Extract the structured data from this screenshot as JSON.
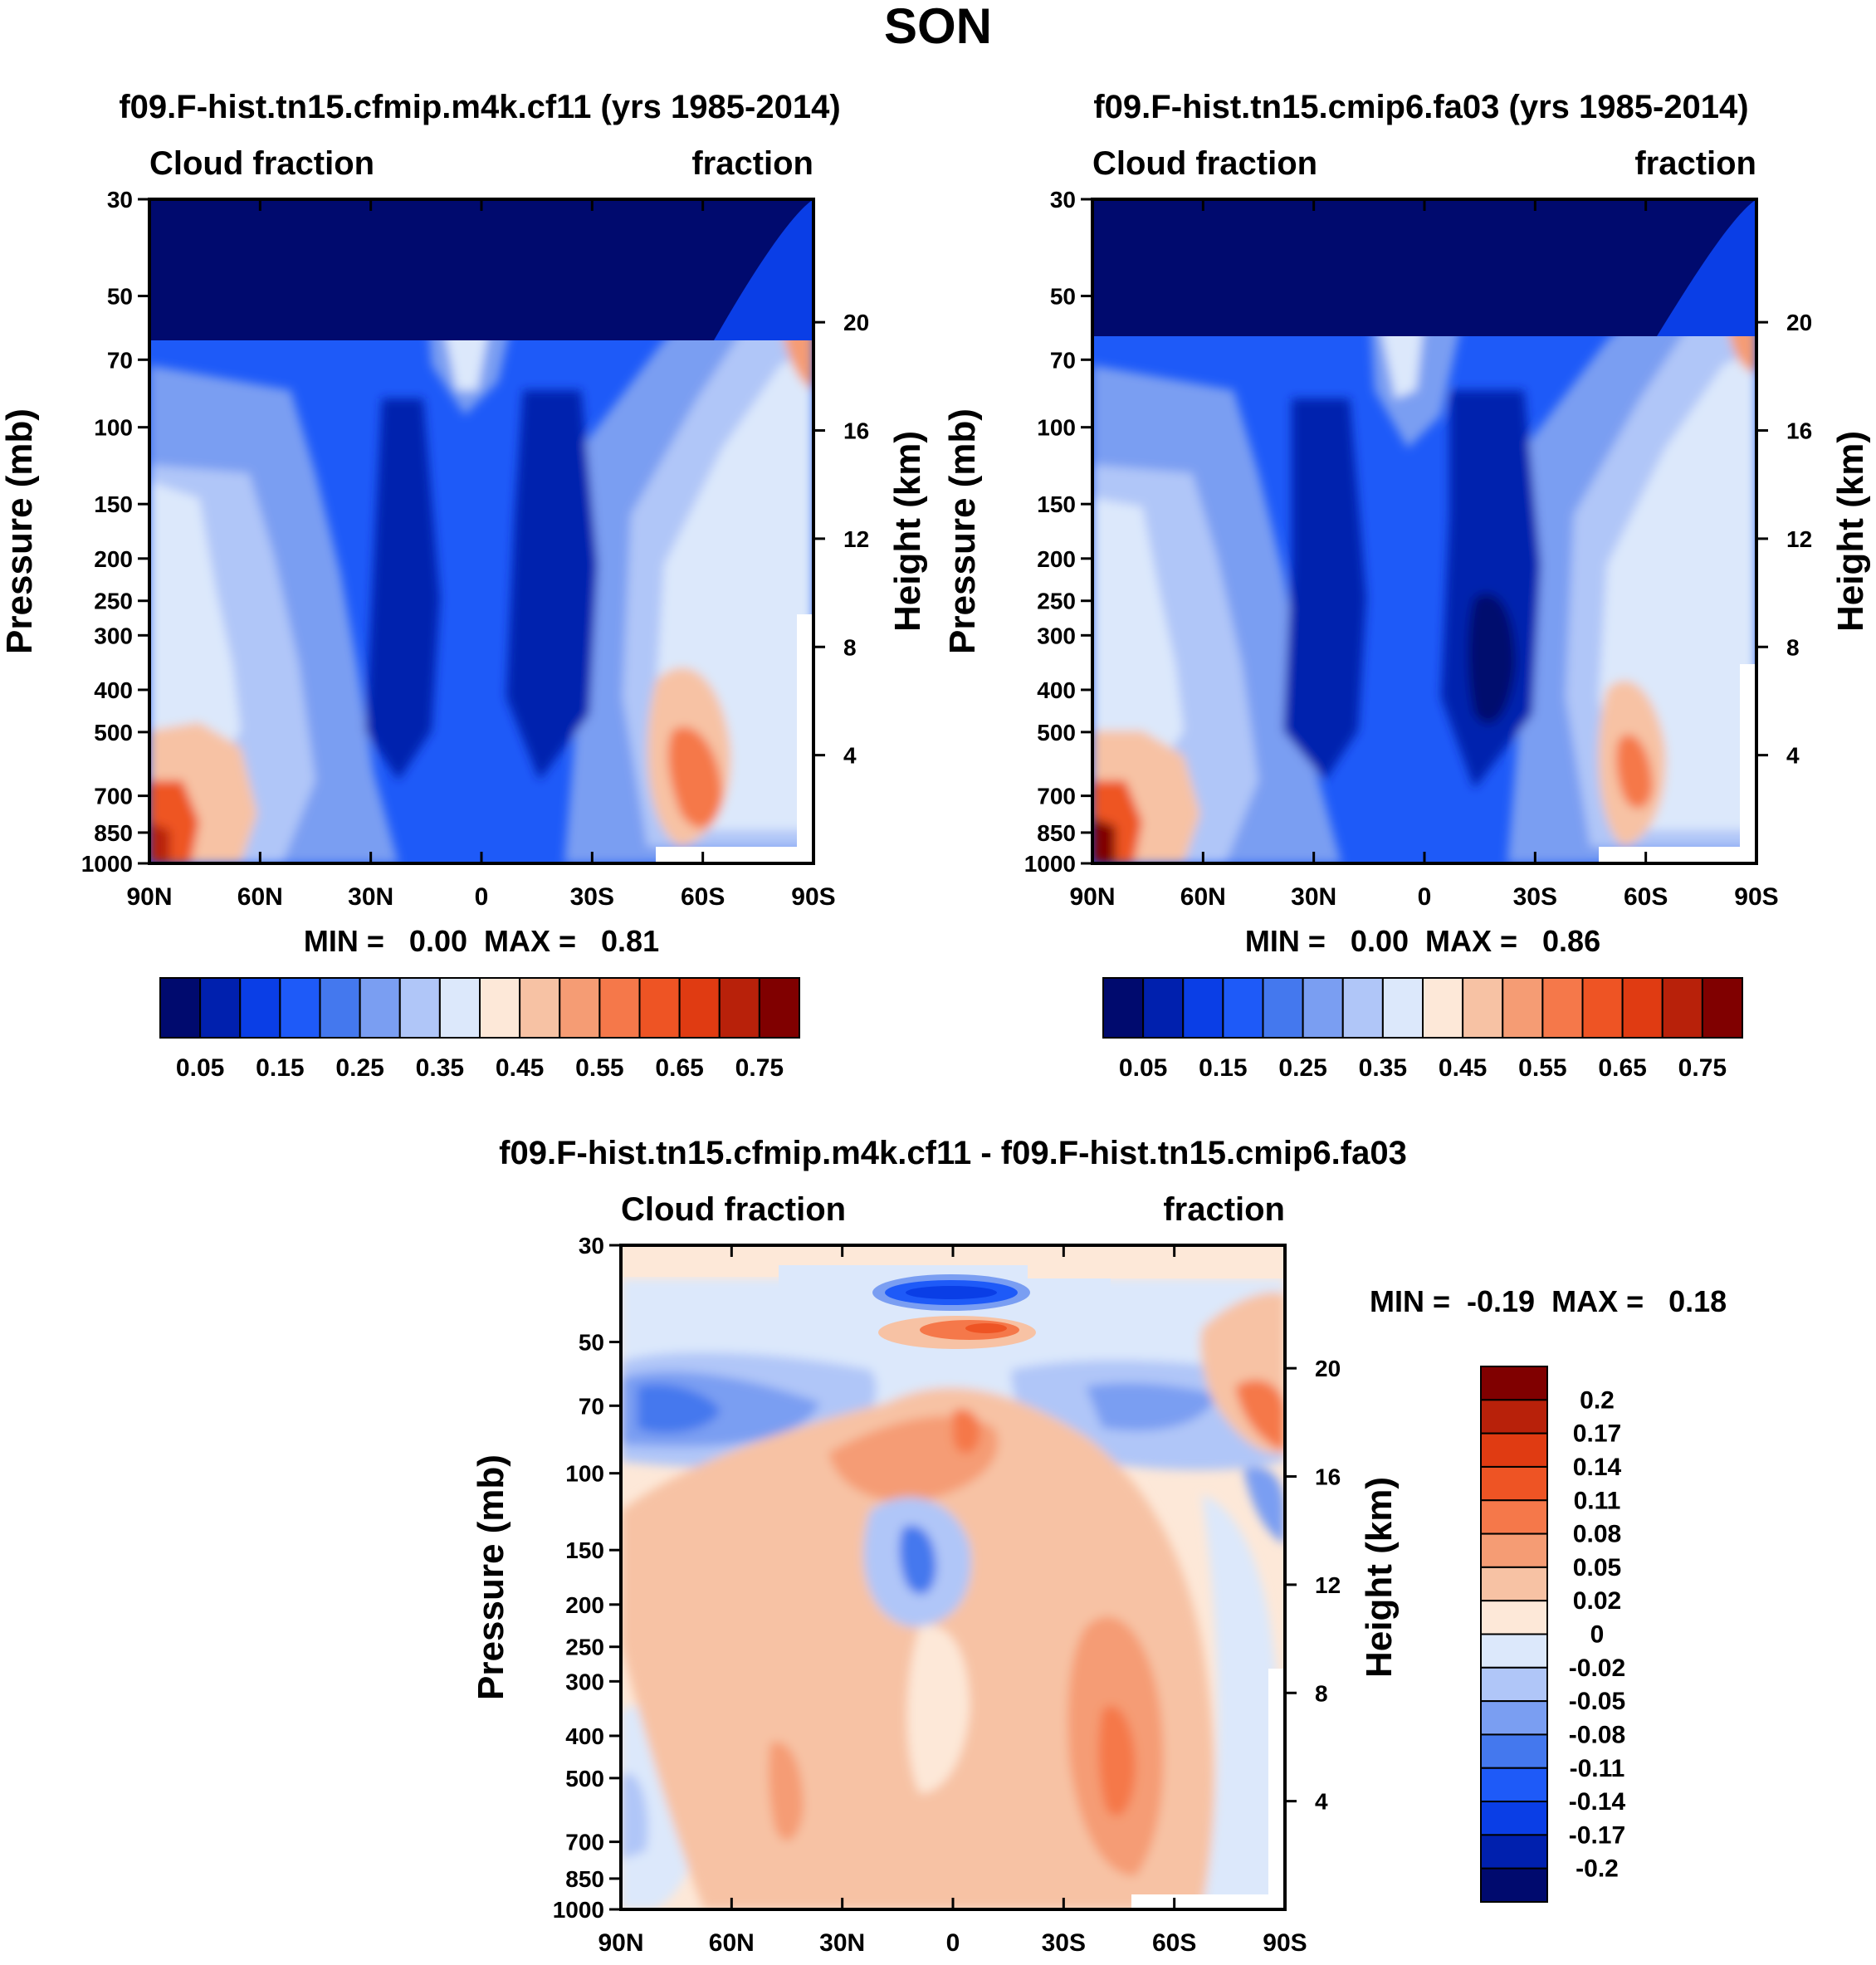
{
  "figure": {
    "title": "SON"
  },
  "colors": {
    "full": [
      "#000a6e",
      "#0020ae",
      "#0a3ee6",
      "#1e5af8",
      "#4478ee",
      "#7a9ef2",
      "#b0c6f8",
      "#dce8fb",
      "#fde8d8",
      "#f7c2a4",
      "#f59c74",
      "#f5784a",
      "#ee5424",
      "#e03b12",
      "#b8210a",
      "#800000"
    ],
    "diff": [
      "#000a6e",
      "#0020ae",
      "#0a3ee6",
      "#1e5af8",
      "#4478ee",
      "#7a9ef2",
      "#b0c6f8",
      "#dce8fb",
      "#fde8d8",
      "#f7c2a4",
      "#f59c74",
      "#f5784a",
      "#ee5424",
      "#e03b12",
      "#b8210a",
      "#800000"
    ]
  },
  "chart_data": [
    {
      "type": "heatmap",
      "title": "f09.F-hist.tn15.cfmip.m4k.cf11 (yrs 1985-2014)",
      "left_label": "Cloud fraction",
      "right_label": "fraction",
      "ylabel": "Pressure (mb)",
      "y2label": "Height (km)",
      "x_ticks": [
        "90N",
        "60N",
        "30N",
        "0",
        "30S",
        "60S",
        "90S"
      ],
      "y_ticks": [
        "30",
        "50",
        "70",
        "100",
        "150",
        "200",
        "250",
        "300",
        "400",
        "500",
        "700",
        "850",
        "1000"
      ],
      "y2_ticks": [
        "20",
        "16",
        "12",
        "8",
        "4"
      ],
      "stats": "MIN =   0.00  MAX =   0.81",
      "colorbar_labels": [
        "0.05",
        "0.15",
        "0.25",
        "0.35",
        "0.45",
        "0.55",
        "0.65",
        "0.75"
      ],
      "ylim": [
        1000,
        30
      ],
      "xlim": [
        "90N",
        "90S"
      ]
    },
    {
      "type": "heatmap",
      "title": "f09.F-hist.tn15.cmip6.fa03 (yrs 1985-2014)",
      "left_label": "Cloud fraction",
      "right_label": "fraction",
      "ylabel": "Pressure (mb)",
      "y2label": "Height (km)",
      "x_ticks": [
        "90N",
        "60N",
        "30N",
        "0",
        "30S",
        "60S",
        "90S"
      ],
      "y_ticks": [
        "30",
        "50",
        "70",
        "100",
        "150",
        "200",
        "250",
        "300",
        "400",
        "500",
        "700",
        "850",
        "1000"
      ],
      "y2_ticks": [
        "20",
        "16",
        "12",
        "8",
        "4"
      ],
      "stats": "MIN =   0.00  MAX =   0.86",
      "colorbar_labels": [
        "0.05",
        "0.15",
        "0.25",
        "0.35",
        "0.45",
        "0.55",
        "0.65",
        "0.75"
      ],
      "ylim": [
        1000,
        30
      ],
      "xlim": [
        "90N",
        "90S"
      ]
    },
    {
      "type": "heatmap",
      "title": "f09.F-hist.tn15.cfmip.m4k.cf11 - f09.F-hist.tn15.cmip6.fa03",
      "left_label": "Cloud fraction",
      "right_label": "fraction",
      "ylabel": "Pressure (mb)",
      "y2label": "Height (km)",
      "x_ticks": [
        "90N",
        "60N",
        "30N",
        "0",
        "30S",
        "60S",
        "90S"
      ],
      "y_ticks": [
        "30",
        "50",
        "70",
        "100",
        "150",
        "200",
        "250",
        "300",
        "400",
        "500",
        "700",
        "850",
        "1000"
      ],
      "y2_ticks": [
        "20",
        "16",
        "12",
        "8",
        "4"
      ],
      "stats": "MIN =  -0.19  MAX =   0.18",
      "colorbar_labels": [
        "0.2",
        "0.17",
        "0.14",
        "0.11",
        "0.08",
        "0.05",
        "0.02",
        "0",
        "-0.02",
        "-0.05",
        "-0.08",
        "-0.11",
        "-0.14",
        "-0.17",
        "-0.2"
      ],
      "ylim": [
        1000,
        30
      ],
      "xlim": [
        "90N",
        "90S"
      ]
    }
  ]
}
